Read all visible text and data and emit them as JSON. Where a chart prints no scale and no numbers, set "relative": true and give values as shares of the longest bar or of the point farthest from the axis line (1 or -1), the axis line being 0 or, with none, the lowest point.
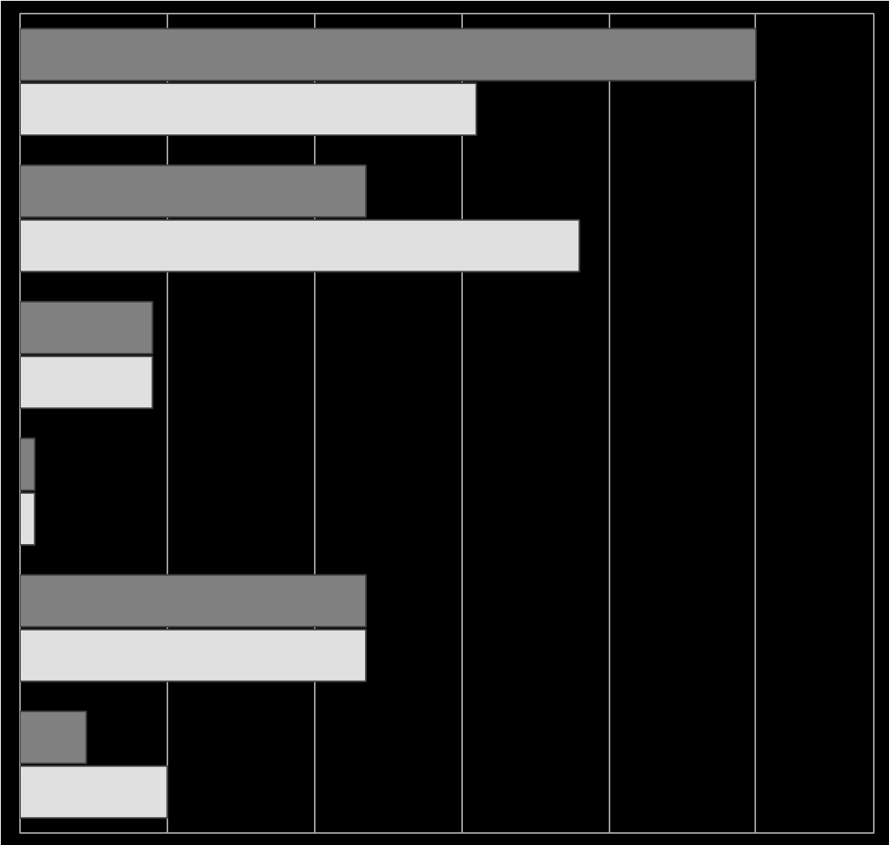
{
  "chart_data": {
    "type": "bar",
    "orientation": "horizontal",
    "relative": true,
    "grid": "x",
    "categories": [
      null,
      null,
      null,
      null,
      null,
      null
    ],
    "series": [
      {
        "color": "#808080",
        "values": [
          1,
          0.47,
          0.18,
          0.02,
          0.47,
          0.09
        ]
      },
      {
        "color": "#e0e0e0",
        "values": [
          0.62,
          0.76,
          0.18,
          0.02,
          0.47,
          0.2
        ]
      }
    ]
  }
}
